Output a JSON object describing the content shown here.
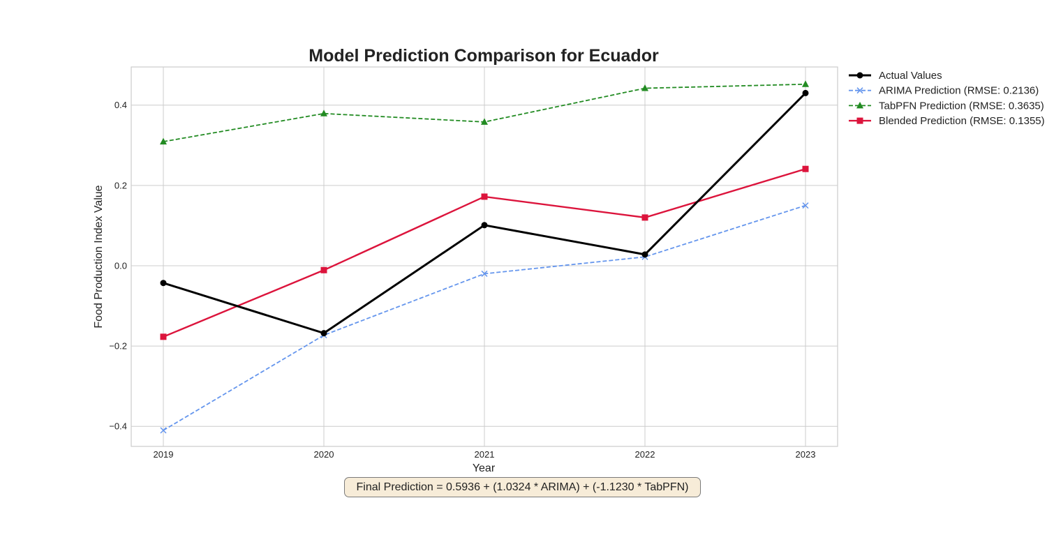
{
  "chart_data": {
    "type": "line",
    "title": "Model Prediction Comparison for Ecuador",
    "xlabel": "Year",
    "ylabel": "Food Production Index Value",
    "x": [
      2019,
      2020,
      2021,
      2022,
      2023
    ],
    "x_ticks": [
      "2019",
      "2020",
      "2021",
      "2022",
      "2023"
    ],
    "y_ticks": [
      "−0.4",
      "−0.2",
      "0.0",
      "0.2",
      "0.4"
    ],
    "y_tick_values": [
      -0.4,
      -0.2,
      0.0,
      0.2,
      0.4
    ],
    "xlim": [
      2018.8,
      2023.2
    ],
    "ylim": [
      -0.45,
      0.495
    ],
    "grid": true,
    "legend_position": "outside-right",
    "series": [
      {
        "name": "Actual Values",
        "values": [
          -0.043,
          -0.168,
          0.101,
          0.028,
          0.43
        ],
        "color": "#000000",
        "marker": "circle",
        "line_style": "solid"
      },
      {
        "name": "ARIMA Prediction (RMSE: 0.2136)",
        "values": [
          -0.41,
          -0.173,
          -0.02,
          0.022,
          0.15
        ],
        "color": "#6495ed",
        "marker": "x",
        "line_style": "dashed"
      },
      {
        "name": "TabPFN Prediction (RMSE: 0.3635)",
        "values": [
          0.309,
          0.379,
          0.358,
          0.442,
          0.452
        ],
        "color": "#228b22",
        "marker": "triangle",
        "line_style": "dashed"
      },
      {
        "name": "Blended Prediction (RMSE: 0.1355)",
        "values": [
          -0.177,
          -0.011,
          0.172,
          0.12,
          0.241
        ],
        "color": "#dc143c",
        "marker": "square",
        "line_style": "solid"
      }
    ],
    "annotation": "Final Prediction = 0.5936 + (1.0324 * ARIMA) + (-1.1230 * TabPFN)"
  }
}
